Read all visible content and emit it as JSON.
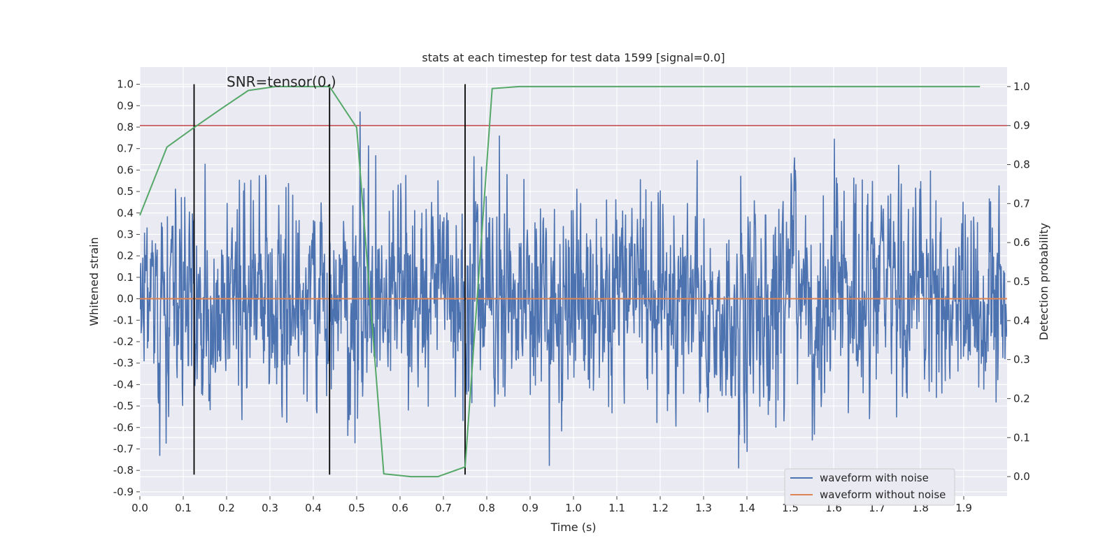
{
  "chart_data": {
    "type": "line",
    "title": "stats at each timestep for test data 1599 [signal=0.0]",
    "xlabel": "Time (s)",
    "ylabel": "Whitened strain",
    "y2label": "Detection probability",
    "xlim": [
      0.0,
      2.0
    ],
    "ylim": [
      -0.92,
      1.08
    ],
    "y2lim": [
      -0.05,
      1.05
    ],
    "xticks": [
      "0.0",
      "0.1",
      "0.2",
      "0.3",
      "0.4",
      "0.5",
      "0.6",
      "0.7",
      "0.8",
      "0.9",
      "1.0",
      "1.1",
      "1.2",
      "1.3",
      "1.4",
      "1.5",
      "1.6",
      "1.7",
      "1.8",
      "1.9"
    ],
    "yticks": [
      "1.0",
      "0.9",
      "0.8",
      "0.7",
      "0.6",
      "0.5",
      "0.4",
      "0.3",
      "0.2",
      "0.1",
      "0.0",
      "-0.1",
      "-0.2",
      "-0.3",
      "-0.4",
      "-0.5",
      "-0.6",
      "-0.7",
      "-0.8",
      "-0.9"
    ],
    "y2ticks": [
      "1.0",
      "0.9",
      "0.8",
      "0.7",
      "0.6",
      "0.5",
      "0.4",
      "0.3",
      "0.2",
      "0.1",
      "0.0"
    ],
    "grid": true,
    "legend_position": "bottom-right",
    "annotation": "SNR=tensor(0.)",
    "series": [
      {
        "name": "waveform with noise",
        "color": "#4c72b0",
        "noise": {
          "samples": 2048,
          "t_end": 2.0,
          "std": 0.24,
          "max": 1.0,
          "min": -0.82,
          "seed": 1599
        }
      },
      {
        "name": "waveform without noise",
        "color": "#dd8452",
        "x": [
          0.0,
          2.0
        ],
        "y": [
          0.0,
          0.0
        ]
      },
      {
        "name": "detection probability",
        "axis": "right",
        "color": "#55a868",
        "x": [
          0.0,
          0.0625,
          0.125,
          0.1875,
          0.25,
          0.3125,
          0.375,
          0.4375,
          0.5,
          0.5625,
          0.625,
          0.6875,
          0.75,
          0.8125,
          0.875,
          0.9375,
          1.0,
          1.0625,
          1.125,
          1.1875,
          1.25,
          1.3125,
          1.375,
          1.4375,
          1.5,
          1.5625,
          1.625,
          1.6875,
          1.75,
          1.8125,
          1.875,
          1.9375
        ],
        "y": [
          0.67,
          0.845,
          0.895,
          0.943,
          0.99,
          1.0,
          1.0,
          1.0,
          0.895,
          0.007,
          0.0,
          0.0,
          0.025,
          0.995,
          1.0,
          1.0,
          1.0,
          1.0,
          1.0,
          1.0,
          1.0,
          1.0,
          1.0,
          1.0,
          1.0,
          1.0,
          1.0,
          1.0,
          1.0,
          1.0,
          1.0,
          1.0
        ]
      }
    ],
    "threshold": {
      "axis": "right",
      "value": 0.9,
      "color": "#c44e52"
    },
    "vlines": {
      "x": [
        0.125,
        0.4375,
        0.75
      ],
      "ymin": -0.82,
      "ymax": 1.0,
      "color": "#000000"
    }
  }
}
